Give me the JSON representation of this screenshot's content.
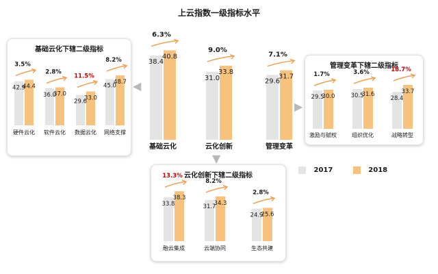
{
  "title": "上云指数一级指标水平",
  "legend": [
    {
      "name": "2017",
      "color": "#e4e4e4"
    },
    {
      "name": "2018",
      "color": "#f6c27d"
    }
  ],
  "colors": {
    "bar2017": "#e4e4e4",
    "bar2018": "#f6c27d",
    "growth_highlight": "#c00000",
    "growth_arrow": "#f0a050"
  },
  "chart_data": [
    {
      "type": "bar",
      "title": "上云指数一级指标水平",
      "categories": [
        "基础云化",
        "云化创新",
        "管理变革"
      ],
      "series": [
        {
          "name": "2017",
          "values": [
            38.4,
            31.0,
            29.6
          ]
        },
        {
          "name": "2018",
          "values": [
            40.8,
            33.8,
            31.7
          ]
        }
      ],
      "growth": [
        "6.3%",
        "9.0%",
        "7.1%"
      ],
      "highlight": [
        false,
        false,
        false
      ]
    },
    {
      "type": "bar",
      "title": "基础云化下辖二级指标",
      "categories": [
        "硬件云化",
        "软件云化",
        "数据云化",
        "网络支撑"
      ],
      "series": [
        {
          "name": "2017",
          "values": [
            42.9,
            36.0,
            29.6,
            45.0
          ]
        },
        {
          "name": "2018",
          "values": [
            44.4,
            37.0,
            33.0,
            48.7
          ]
        }
      ],
      "growth": [
        "3.5%",
        "2.8%",
        "11.5%",
        "8.2%"
      ],
      "highlight": [
        false,
        false,
        true,
        false
      ]
    },
    {
      "type": "bar",
      "title": "管理变革下辖二级指标",
      "categories": [
        "激励与赋权",
        "组织优化",
        "战略转型"
      ],
      "series": [
        {
          "name": "2017",
          "values": [
            29.5,
            30.5,
            28.4
          ]
        },
        {
          "name": "2018",
          "values": [
            30.0,
            31.6,
            33.7
          ]
        }
      ],
      "growth": [
        "1.7%",
        "3.6%",
        "18.7%"
      ],
      "highlight": [
        false,
        false,
        true
      ]
    },
    {
      "type": "bar",
      "title": "云化创新下辖二级指标",
      "categories": [
        "融云集成",
        "云端协同",
        "生态共建"
      ],
      "series": [
        {
          "name": "2017",
          "values": [
            33.8,
            31.7,
            24.9
          ]
        },
        {
          "name": "2018",
          "values": [
            38.3,
            34.3,
            25.6
          ]
        }
      ],
      "growth": [
        "13.3%",
        "8.2%",
        "2.8%"
      ],
      "highlight": [
        true,
        false,
        false
      ]
    }
  ]
}
